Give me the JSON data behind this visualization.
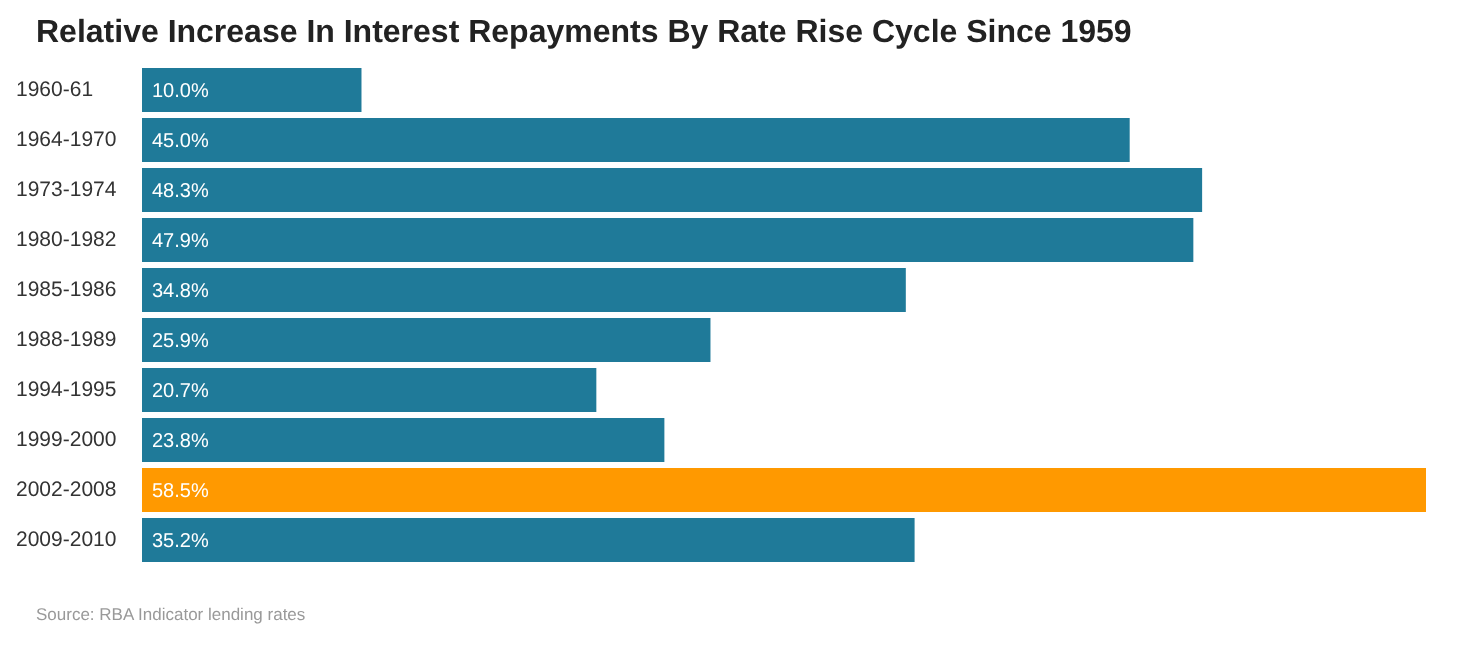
{
  "chart_data": {
    "type": "bar",
    "orientation": "horizontal",
    "title": "Relative Increase In Interest Repayments By Rate Rise Cycle Since 1959",
    "categories": [
      "1960-61",
      "1964-1970",
      "1973-1974",
      "1980-1982",
      "1985-1986",
      "1988-1989",
      "1994-1995",
      "1999-2000",
      "2002-2008",
      "2009-2010"
    ],
    "values": [
      10.0,
      45.0,
      48.3,
      47.9,
      34.8,
      25.9,
      20.7,
      23.8,
      58.5,
      35.2
    ],
    "colors": [
      "#1f7a99",
      "#1f7a99",
      "#1f7a99",
      "#1f7a99",
      "#1f7a99",
      "#1f7a99",
      "#1f7a99",
      "#1f7a99",
      "#ff9900",
      "#1f7a99"
    ],
    "value_labels": [
      "10.0%",
      "45.0%",
      "48.3%",
      "47.9%",
      "34.8%",
      "25.9%",
      "20.7%",
      "23.8%",
      "58.5%",
      "35.2%"
    ],
    "grid": false,
    "annotations": [
      "Source: RBA Indicator lending rates"
    ]
  }
}
